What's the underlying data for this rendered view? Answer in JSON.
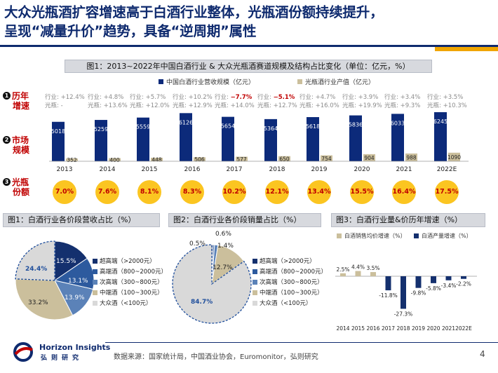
{
  "headline": {
    "line1": "大众光瓶酒扩容增速高于白酒行业整体，光瓶酒份额持续提升，",
    "line2": "呈现“减量升价”趋势，具备“逆周期”属性"
  },
  "fig1": {
    "title": "图1：2013~2022年中国白酒行业 & 大众光瓶酒赛道规模及结构占比变化（单位：亿元，%）",
    "legend_industry": "中国白酒行业营收规模（亿元）",
    "legend_bottle": "光瓶酒行业产值（亿元）",
    "row1_num": "1",
    "row1_l1": "历年",
    "row1_l2": "增速",
    "row2_num": "2",
    "row2_l1": "市场",
    "row2_l2": "规模",
    "row3_num": "3",
    "row3_l1": "光瓶",
    "row3_l2": "份额",
    "colors": {
      "industry": "#0c2a7a",
      "bottle": "#cbbf9c",
      "share": "#fbc521"
    }
  },
  "fig1_growth": [
    {
      "industry_label": "行业: +12.4%",
      "bottle_label": "光瓶: -",
      "neg": false
    },
    {
      "industry_label": "行业: +4.8%",
      "bottle_label": "光瓶: +13.6%",
      "neg": false
    },
    {
      "industry_label": "行业: +5.7%",
      "bottle_label": "光瓶: +12.0%",
      "neg": false
    },
    {
      "industry_label": "行业: +10.2%",
      "bottle_label": "光瓶: +12.9%",
      "neg": false
    },
    {
      "industry_label": "行业: ",
      "neg_value": "−7.7%",
      "bottle_label": "光瓶: +14.0%",
      "neg": true
    },
    {
      "industry_label": "行业: ",
      "neg_value": "−5.1%",
      "bottle_label": "光瓶: +12.7%",
      "neg": true
    },
    {
      "industry_label": "行业: +4.7%",
      "bottle_label": "光瓶: +16.0%",
      "neg": false
    },
    {
      "industry_label": "行业: +3.9%",
      "bottle_label": "光瓶: +19.9%",
      "neg": false
    },
    {
      "industry_label": "行业: +3.4%",
      "bottle_label": "光瓶: +9.3%",
      "neg": false
    },
    {
      "industry_label": "行业: +3.5%",
      "bottle_label": "光瓶: +10.3%",
      "neg": false
    }
  ],
  "chart_data": [
    {
      "type": "bar",
      "categories": [
        "2013",
        "2014",
        "2015",
        "2016",
        "2017",
        "2018",
        "2019",
        "2020",
        "2021",
        "2022E"
      ],
      "series": [
        {
          "name": "中国白酒行业营收规模（亿元）",
          "values": [
            5018,
            5259,
            5559,
            6126,
            5654,
            5364,
            5618,
            5836,
            6033,
            6245
          ]
        },
        {
          "name": "光瓶酒行业产值（亿元）",
          "values": [
            352,
            400,
            448,
            506,
            577,
            650,
            754,
            904,
            988,
            1090
          ]
        }
      ],
      "share_labels": [
        "7.0%",
        "7.6%",
        "8.1%",
        "8.3%",
        "10.2%",
        "12.1%",
        "13.4%",
        "15.5%",
        "16.4%",
        "17.5%"
      ],
      "ylim": [
        0,
        6500
      ]
    },
    {
      "type": "pie",
      "title": "图1：白酒行业各价段营收占比（%）",
      "labels": [
        "超高端（>2000元）",
        "高端酒（800~2000元）",
        "次高端（300~800元）",
        "中端酒（100~300元）",
        "大众酒（<100元）"
      ],
      "values": [
        15.5,
        13.1,
        13.9,
        33.2,
        24.4
      ],
      "value_labels": [
        "15.5%",
        "13.1%",
        "13.9%",
        "33.2%",
        "24.4%"
      ]
    },
    {
      "type": "pie",
      "title": "图2：白酒行业各价段销量占比（%）",
      "labels": [
        "超高端（>2000元）",
        "高端酒（800~2000元）",
        "次高端（300~800元）",
        "中端酒（100~300元）",
        "大众酒（<100元）"
      ],
      "values": [
        0.5,
        0.6,
        1.4,
        12.7,
        84.7
      ],
      "value_labels": [
        "0.5%",
        "0.6%",
        "1.4%",
        "12.7%",
        "84.7%"
      ]
    },
    {
      "type": "bar",
      "title": "图3：白酒行业量&价历年增速（%）",
      "categories": [
        "2014",
        "2015",
        "2016",
        "2017",
        "2018",
        "2019",
        "2020",
        "2021",
        "2022E"
      ],
      "series": [
        {
          "name": "白酒销售均价增速（%）",
          "values": [
            2.5,
            4.4,
            3.5,
            null,
            null,
            null,
            null,
            null,
            null
          ]
        },
        {
          "name": "白酒产量增速（%）",
          "values": [
            null,
            null,
            null,
            -11.8,
            -27.3,
            -9.8,
            -5.8,
            -3.4,
            -2.2
          ]
        }
      ],
      "value_labels": [
        "2.5%",
        "4.4%",
        "3.5%",
        "-11.8%",
        "-27.3%",
        "-9.8%",
        "-5.8%",
        "-3.4%",
        "-2.2%"
      ]
    }
  ],
  "pie_legend": {
    "items": [
      "超高端（>2000元）",
      "高端酒（800~2000元）",
      "次高端（300~800元）",
      "中端酒（100~300元）",
      "大众酒（<100元）"
    ],
    "colors": [
      "#14306e",
      "#2d5a9e",
      "#5b82b8",
      "#cbbf9c",
      "#d9d9d9"
    ]
  },
  "fig3_colors": {
    "price": "#cbbf9c",
    "volume": "#14306e"
  },
  "footer": {
    "source": "数据来源：国家统计局，中国酒业协会，Euromonitor，弘则研究",
    "page": "4",
    "logo_en": "Horizon Insights",
    "logo_cn": "弘则研究"
  }
}
